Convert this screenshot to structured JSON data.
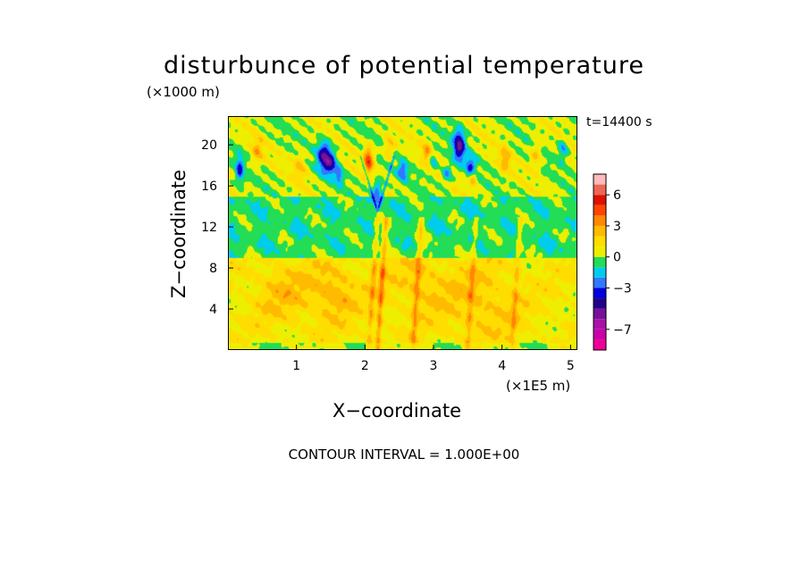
{
  "chart_data": {
    "type": "heatmap",
    "title": "disturbunce of potential temperature",
    "x_unit_label": "(×1E5 m)",
    "y_unit_label": "(×1000 m)",
    "xlabel": "X−coordinate",
    "ylabel": "Z−coordinate",
    "time_label": "t=14400 s",
    "contour_note": "CONTOUR INTERVAL = 1.000E+00",
    "xlim": [
      0,
      5.1
    ],
    "ylim": [
      0,
      22.8
    ],
    "x_ticks": [
      1,
      2,
      3,
      4,
      5
    ],
    "x_tick_labels": [
      "1",
      "2",
      "3",
      "4",
      "5"
    ],
    "y_ticks": [
      4,
      8,
      12,
      16,
      20
    ],
    "y_tick_labels": [
      "4",
      "8",
      "12",
      "16",
      "20"
    ],
    "colorbar": {
      "levels": [
        -9,
        -8,
        -7,
        -6,
        -5,
        -4,
        -3,
        -2,
        -1,
        0,
        1,
        2,
        3,
        4,
        5,
        6,
        7,
        8
      ],
      "colors": [
        "#ee0099",
        "#cc00aa",
        "#aa11aa",
        "#771199",
        "#220088",
        "#0000dd",
        "#3377ff",
        "#00ccee",
        "#22dd55",
        "#eeee00",
        "#ffdd00",
        "#ffbb00",
        "#ff8800",
        "#ff4400",
        "#dd1100",
        "#ee6655",
        "#ffbbbb"
      ],
      "tick_values": [
        6,
        3,
        0,
        -3,
        -7
      ],
      "tick_labels": [
        "6",
        "3",
        "0",
        "−3",
        "−7"
      ]
    },
    "grid": false
  }
}
